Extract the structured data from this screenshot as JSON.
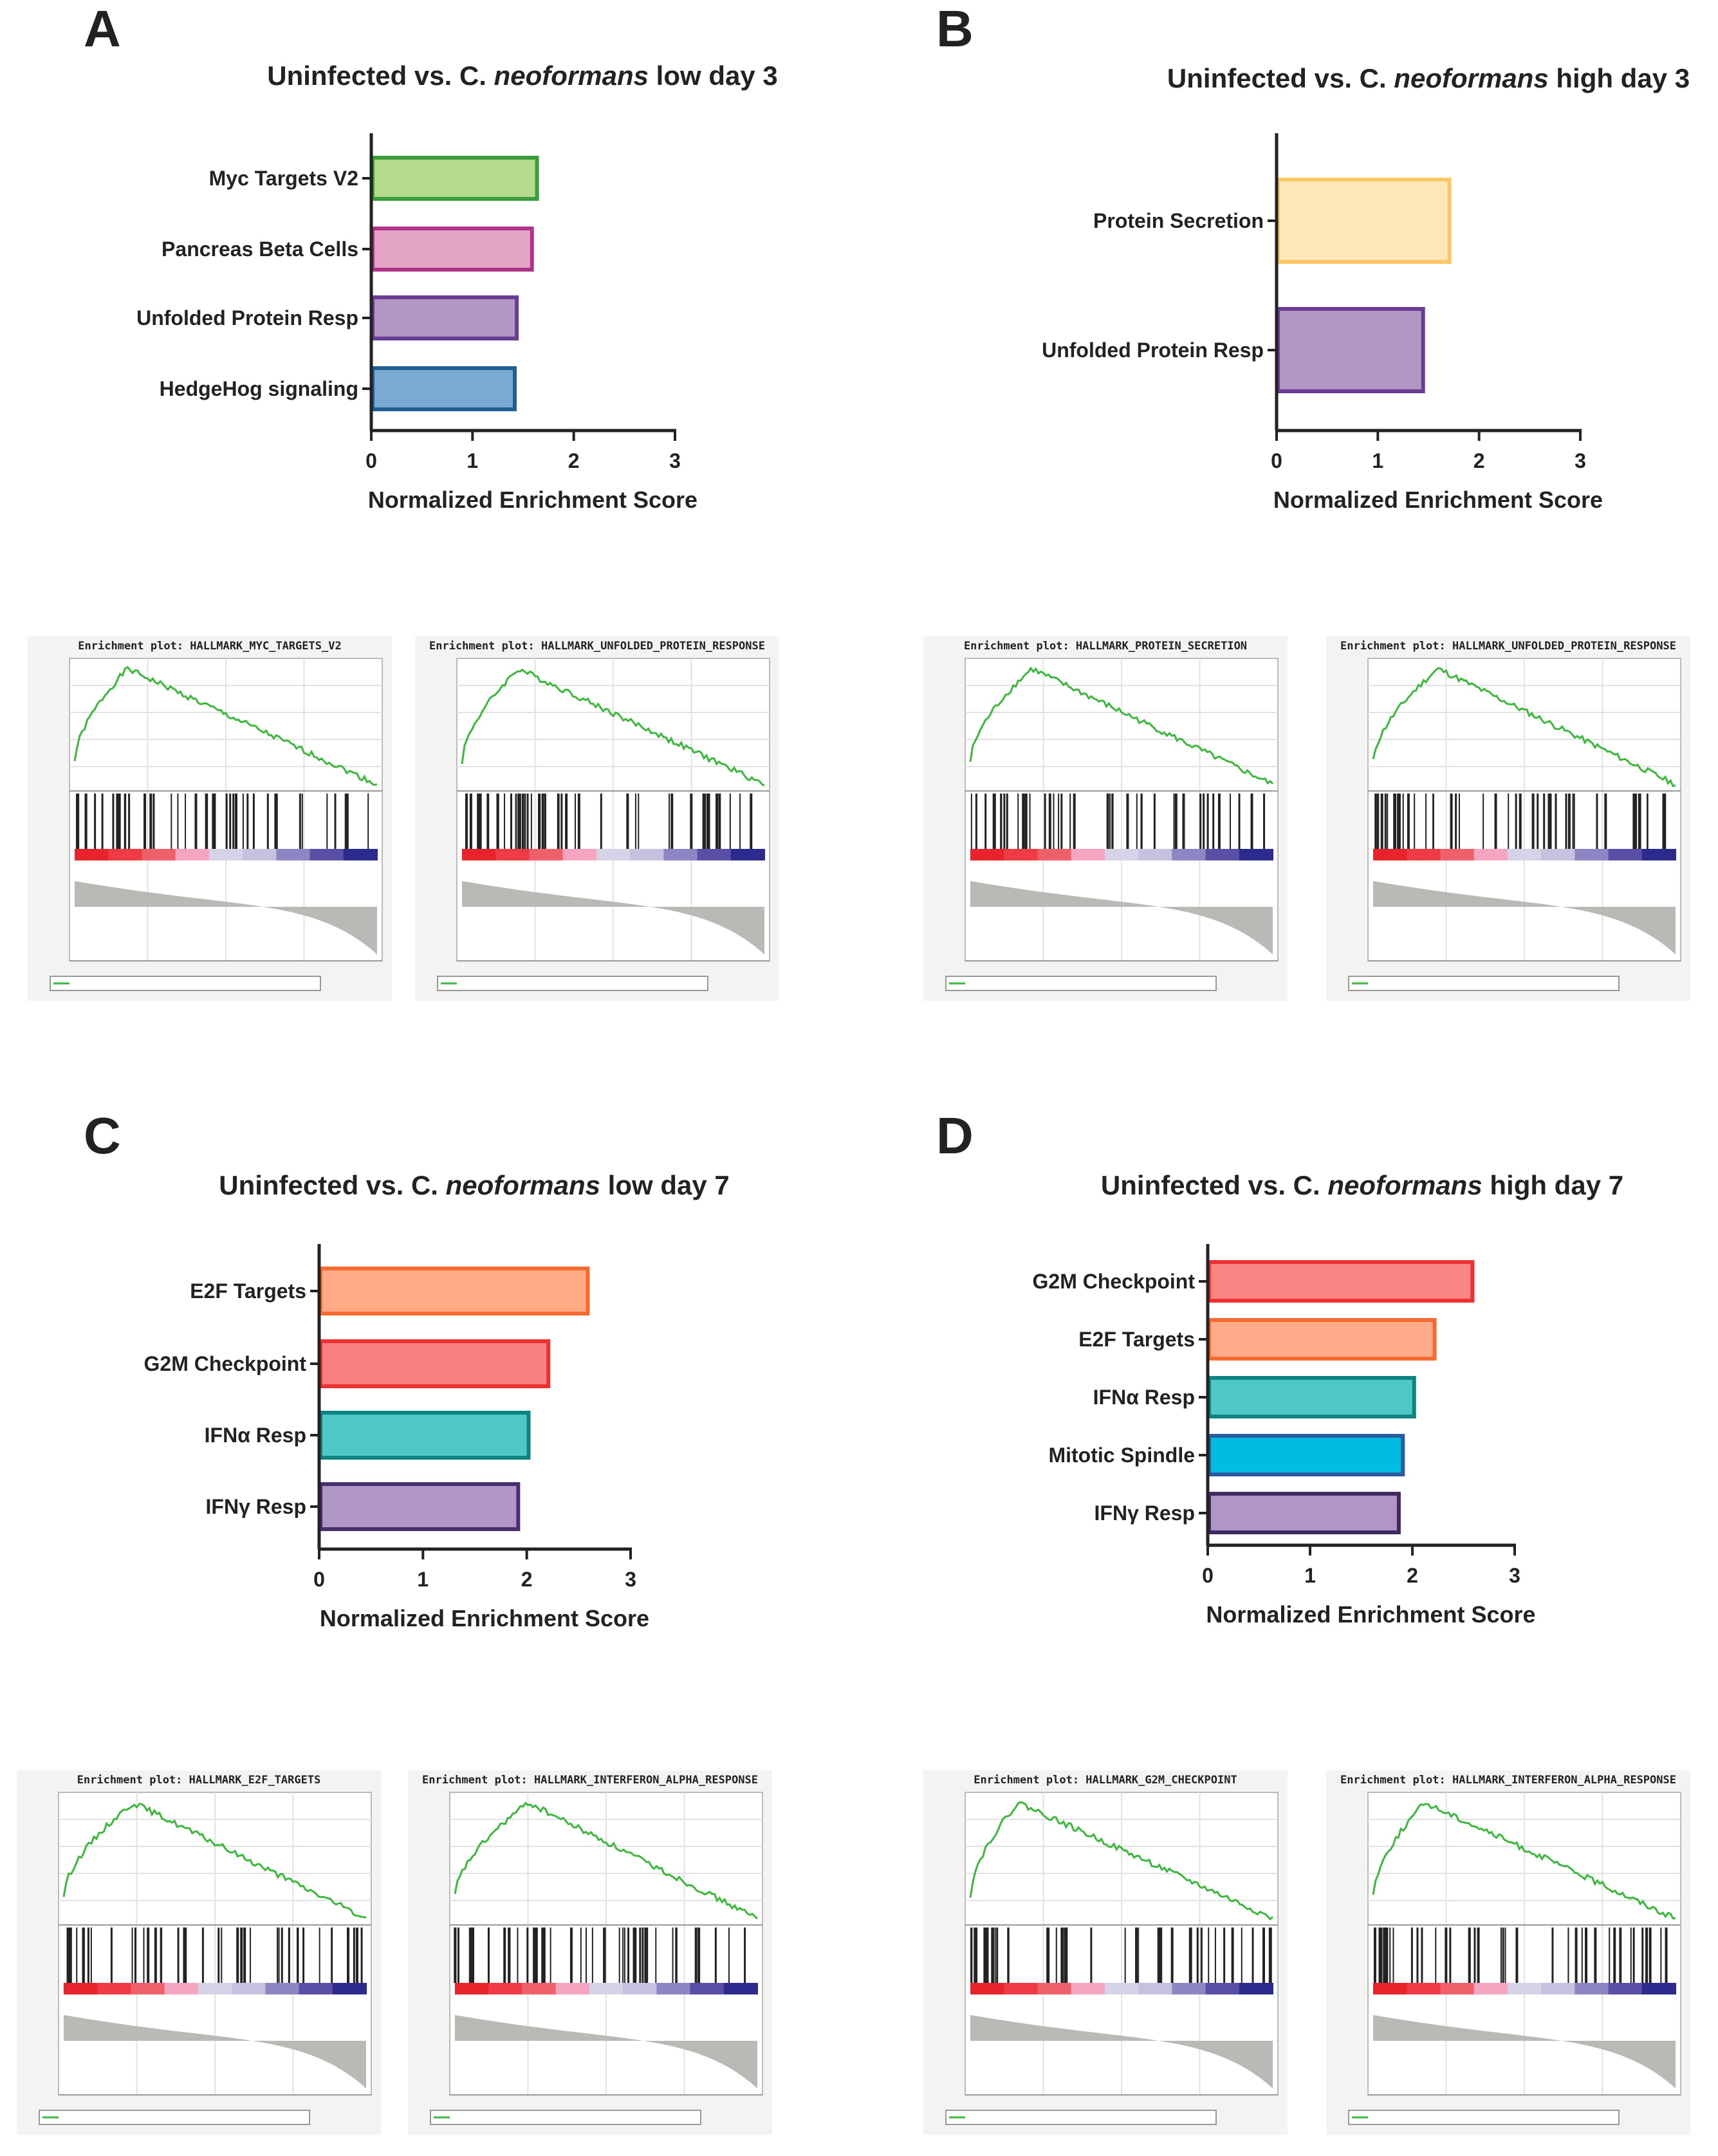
{
  "panels": [
    {
      "letter": "A",
      "chart_data": {
        "type": "bar",
        "orientation": "horizontal",
        "title_parts": [
          "Uninfected vs. C. ",
          "neoformans",
          " low day 3"
        ],
        "xlabel": "Normalized Enrichment Score",
        "xlim": [
          0,
          3
        ],
        "xticks": [
          "0",
          "1",
          "2",
          "3"
        ],
        "categories": [
          "Myc Targets V2",
          "Pancreas Beta Cells",
          "Unfolded Protein Resp",
          "HedgeHog signaling"
        ],
        "values": [
          1.65,
          1.6,
          1.45,
          1.43
        ],
        "fill_colors": [
          "#b5dc8e",
          "#e4a6c6",
          "#b196c4",
          "#7aa9d2"
        ],
        "stroke_colors": [
          "#3a9c3a",
          "#b0338a",
          "#6b3c93",
          "#1f5f96"
        ]
      },
      "enrichment_plots": [
        {
          "title": "Enrichment plot: HALLMARK_MYC_TARGETS_V2"
        },
        {
          "title": "Enrichment plot: HALLMARK_UNFOLDED_PROTEIN_RESPONSE"
        }
      ]
    },
    {
      "letter": "B",
      "chart_data": {
        "type": "bar",
        "orientation": "horizontal",
        "title_parts": [
          "Uninfected vs. C. ",
          "neoformans",
          " high day 3"
        ],
        "xlabel": "Normalized Enrichment Score",
        "xlim": [
          0,
          3
        ],
        "xticks": [
          "0",
          "1",
          "2",
          "3"
        ],
        "categories": [
          "Protein Secretion",
          "Unfolded Protein Resp"
        ],
        "values": [
          1.72,
          1.46
        ],
        "fill_colors": [
          "#fde6b8",
          "#b196c4"
        ],
        "stroke_colors": [
          "#fbc766",
          "#6b3c93"
        ]
      },
      "enrichment_plots": [
        {
          "title": "Enrichment plot: HALLMARK_PROTEIN_SECRETION"
        },
        {
          "title": "Enrichment plot: HALLMARK_UNFOLDED_PROTEIN_RESPONSE"
        }
      ]
    },
    {
      "letter": "C",
      "chart_data": {
        "type": "bar",
        "orientation": "horizontal",
        "title_parts": [
          "Uninfected vs. C. ",
          "neoformans",
          " low day 7"
        ],
        "xlabel": "Normalized Enrichment Score",
        "xlim": [
          0,
          3
        ],
        "xticks": [
          "0",
          "1",
          "2",
          "3"
        ],
        "categories": [
          "E2F Targets",
          "G2M Checkpoint",
          "IFNα Resp",
          "IFNγ Resp"
        ],
        "values": [
          2.6,
          2.22,
          2.03,
          1.93
        ],
        "fill_colors": [
          "#fdaa85",
          "#fa8080",
          "#4ec8c4",
          "#b096c4"
        ],
        "stroke_colors": [
          "#f56a2f",
          "#ee3030",
          "#0f8282",
          "#4a2f6f"
        ]
      },
      "enrichment_plots": [
        {
          "title": "Enrichment plot: HALLMARK_E2F_TARGETS"
        },
        {
          "title": "Enrichment plot: HALLMARK_INTERFERON_ALPHA_RESPONSE"
        }
      ]
    },
    {
      "letter": "D",
      "chart_data": {
        "type": "bar",
        "orientation": "horizontal",
        "title_parts": [
          "Uninfected vs. C. ",
          "neoformans",
          " high day 7"
        ],
        "xlabel": "Normalized Enrichment Score",
        "xlim": [
          0,
          3
        ],
        "xticks": [
          "0",
          "1",
          "2",
          "3"
        ],
        "categories": [
          "G2M Checkpoint",
          "E2F Targets",
          "IFNα Resp",
          "Mitotic Spindle",
          "IFNγ Resp"
        ],
        "values": [
          2.6,
          2.23,
          2.03,
          1.92,
          1.88
        ],
        "fill_colors": [
          "#fa8585",
          "#fdab88",
          "#4ec8c4",
          "#00bde0",
          "#b096c4"
        ],
        "stroke_colors": [
          "#ee3030",
          "#f56a2f",
          "#0f8282",
          "#2a5aa0",
          "#3e2a5e"
        ]
      },
      "enrichment_plots": [
        {
          "title": "Enrichment plot: HALLMARK_G2M_CHECKPOINT"
        },
        {
          "title": "Enrichment plot: HALLMARK_INTERFERON_ALPHA_RESPONSE"
        }
      ]
    }
  ]
}
